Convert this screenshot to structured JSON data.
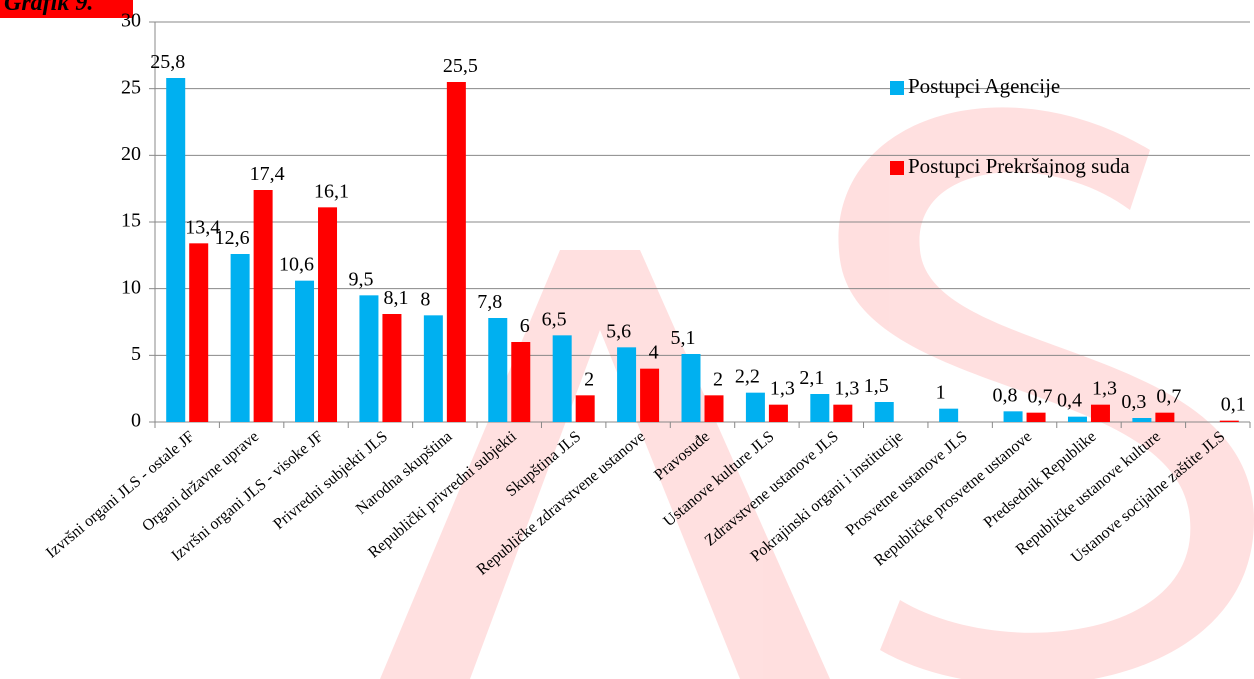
{
  "chart_data": {
    "type": "bar",
    "title": "Grafik 9.",
    "categories": [
      "Izvršni organi JLS - ostale JF",
      "Organi državne uprave",
      "Izvršni organi JLS - visoke JF",
      "Privredni subjekti JLS",
      "Narodna skupština",
      "Republički privredni subjekti",
      "Skupština JLS",
      "Republičke zdravstvene ustanove",
      "Pravosuđe",
      "Ustanove kulture JLS",
      "Zdravstvene ustanove JLS",
      "Pokrajinski organi i institucije",
      "Prosvetne ustanove JLS",
      "Republičke prosvetne ustanove",
      "Predsednik Republike",
      "Republičke ustanove kulture",
      "Ustanove socijalne zaštite JLS"
    ],
    "series": [
      {
        "name": "Postupci Agencije",
        "color": "#00b0f0",
        "values": [
          25.8,
          12.6,
          10.6,
          9.5,
          8,
          7.8,
          6.5,
          5.6,
          5.1,
          2.2,
          2.1,
          1.5,
          1,
          0.8,
          0.4,
          0.3,
          null
        ],
        "value_labels": [
          "25,8",
          "12,6",
          "10,6",
          "9,5",
          "8",
          "7,8",
          "6,5",
          "5,6",
          "5,1",
          "2,2",
          "2,1",
          "1,5",
          "1",
          "0,8",
          "0,4",
          "0,3",
          null
        ]
      },
      {
        "name": "Postupci Prekršajnog suda",
        "color": "#ff0000",
        "values": [
          13.4,
          17.4,
          16.1,
          8.1,
          25.5,
          6,
          2,
          4,
          2,
          1.3,
          1.3,
          null,
          null,
          0.7,
          1.3,
          0.7,
          0.1
        ],
        "value_labels": [
          "13,4",
          "17,4",
          "16,1",
          "8,1",
          "25,5",
          "6",
          "2",
          "4",
          "2",
          "1,3",
          "1,3",
          null,
          null,
          "0,7",
          "1,3",
          "0,7",
          "0,1"
        ]
      }
    ],
    "ylim": [
      0,
      30
    ],
    "yticks": [
      0,
      5,
      10,
      15,
      20,
      25,
      30
    ],
    "grid": true,
    "legend": "right"
  }
}
